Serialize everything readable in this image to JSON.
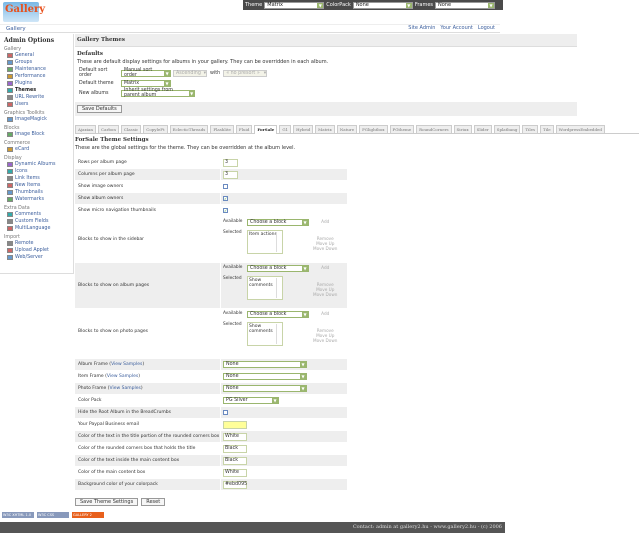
{
  "topbar": {
    "theme_label": "Theme",
    "theme": "Matrix",
    "colorpack_label": "ColorPack",
    "colorpack": "None",
    "frames_label": "Frames",
    "frames": "None"
  },
  "logo": "Gallery",
  "breadcrumb": "Gallery",
  "system_links": [
    "Site Admin",
    "Your Account",
    "Logout"
  ],
  "sidebar": {
    "title": "Admin Options",
    "groups": [
      {
        "name": "Gallery",
        "items": [
          "General",
          "Groups",
          "Maintenance",
          "Performance",
          "Plugins",
          "Themes",
          "URL Rewrite",
          "Users"
        ]
      },
      {
        "name": "Graphics Toolkits",
        "items": [
          "ImageMagick"
        ]
      },
      {
        "name": "Blocks",
        "items": [
          "Image Block"
        ]
      },
      {
        "name": "Commerce",
        "items": [
          "eCard"
        ]
      },
      {
        "name": "Display",
        "items": [
          "Dynamic Albums",
          "Icons",
          "Link Items",
          "New Items",
          "Thumbnails",
          "Watermarks"
        ]
      },
      {
        "name": "Extra Data",
        "items": [
          "Comments",
          "Custom Fields",
          "MultiLanguage"
        ]
      },
      {
        "name": "Import",
        "items": [
          "Remote",
          "Upload Applet",
          "Web/Server"
        ]
      }
    ],
    "current": "Themes"
  },
  "main": {
    "title": "Gallery Themes",
    "defaults_title": "Defaults",
    "defaults_desc": "These are default display settings for albums in your gallery. They can be overridden in each album.",
    "sort_label": "Default sort order",
    "sort": "Manual sort order",
    "direction": "Ascending",
    "with_label": "with",
    "presort": "« no presort »",
    "theme_label": "Default theme",
    "theme": "Matrix",
    "new_albums_label": "New albums",
    "new_albums": "Inherit settings from parent album",
    "save_defaults": "Save Defaults"
  },
  "tabs": [
    "Ajaxian",
    "Carbon",
    "Classic",
    "CopyleFt",
    "EclecticThreads",
    "Flashlite",
    "Fluid",
    "ForSale",
    "G1",
    "Hybrid",
    "Matrix",
    "Nature",
    "PGlightbox",
    "PGtheme",
    "RoundCorners",
    "Siriux",
    "Slider",
    "Splatbang",
    "Tiles",
    "Tile",
    "WordpressEmbedded"
  ],
  "active_tab": "ForSale",
  "theme_settings": {
    "title": "ForSale Theme Settings",
    "desc": "These are the global settings for the theme. They can be overridden at the album level.",
    "rows_label": "Rows per album page",
    "rows": "3",
    "cols_label": "Columns per album page",
    "cols": "3",
    "image_owners_label": "Show image owners",
    "image_owners": false,
    "album_owners_label": "Show album owners",
    "album_owners": true,
    "micro_nav_label": "Show micro navigation thumbnails",
    "micro_nav": true,
    "blocks": [
      {
        "label": "Blocks to show in the sidebar",
        "selected": "Item actions"
      },
      {
        "label": "Blocks to show on album pages",
        "selected": "Show comments"
      },
      {
        "label": "Blocks to show on photo pages",
        "selected": "Show comments"
      }
    ],
    "available_label": "Available",
    "selected_label": "Selected",
    "choose": "Choose a block",
    "add": "Add",
    "remove": "Remove",
    "move_up": "Move Up",
    "move_down": "Move Down",
    "view_samples": "View Samples",
    "album_frame_label": "Album Frame",
    "album_frame": "None",
    "item_frame_label": "Item Frame",
    "item_frame": "None",
    "photo_frame_label": "Photo Frame",
    "photo_frame": "None",
    "color_pack_label": "Color Pack",
    "color_pack": "PG Silver",
    "hide_root_label": "Hide the Root Album in the BreadCrumbs",
    "hide_root": false,
    "paypal_label": "Your Paypal Business email",
    "paypal": "",
    "title_text_label": "Color of the text in the title portion of the rounded corners box",
    "title_text": "White",
    "rounded_box_label": "Color of the rounded corners box that holds the title",
    "rounded_box": "Black",
    "content_text_label": "Color of the text inside the main content box",
    "content_text": "Black",
    "content_box_label": "Color of the main content box",
    "content_box": "White",
    "bg_label": "Background color of your colorpack",
    "bg": "#ebd095",
    "save": "Save Theme Settings",
    "reset": "Reset"
  },
  "badges": [
    "W3C XHTML 1.0",
    "W3C CSS",
    "GALLERY 2"
  ],
  "footer": "Contact: admin at gallery2.hu - www.gallery2.hu - (c) 2006"
}
